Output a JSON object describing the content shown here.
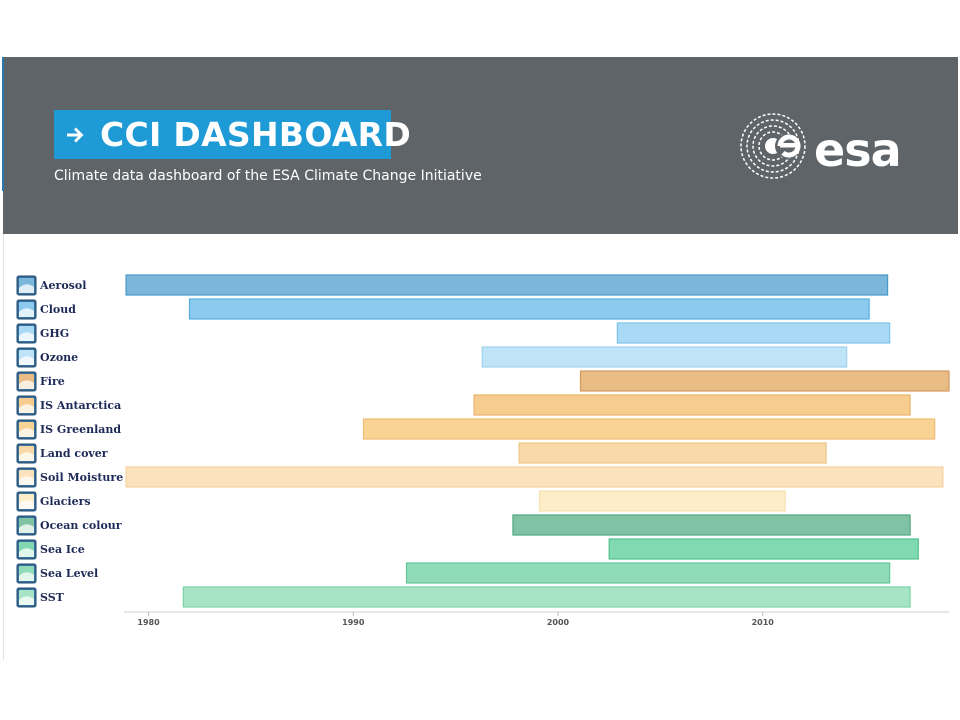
{
  "header": {
    "title": "CCI DASHBOARD",
    "subtitle": "Climate data dashboard of the ESA Climate Change Initiative",
    "logo_text": "esa",
    "background_color": "#5f6468",
    "title_box_color": "#1e9ad6"
  },
  "chart_data": {
    "type": "timeline",
    "x_ticks": [
      "1980",
      "1990",
      "2000",
      "2010"
    ],
    "xlim": [
      1978.8,
      2019.1
    ],
    "grid": false,
    "series": [
      {
        "name": "Aerosol",
        "start": 1978.9,
        "end": 2016.1,
        "color": "#7bb7da",
        "border": "#4a98c6",
        "icon": "aerosol-icon"
      },
      {
        "name": "Cloud",
        "start": 1982.0,
        "end": 2015.2,
        "color": "#8ccaf0",
        "border": "#58aee0",
        "icon": "cloud-icon"
      },
      {
        "name": "GHG",
        "start": 2002.9,
        "end": 2016.2,
        "color": "#aad9f6",
        "border": "#7cc3ec",
        "icon": "ghg-icon"
      },
      {
        "name": "Ozone",
        "start": 1996.3,
        "end": 2014.1,
        "color": "#bfe3f7",
        "border": "#9fd3f0",
        "icon": "ozone-icon"
      },
      {
        "name": "Fire",
        "start": 2001.1,
        "end": 2019.1,
        "color": "#e9bc85",
        "border": "#d19b5e",
        "icon": "fire-icon"
      },
      {
        "name": "IS Antarctica",
        "start": 1995.9,
        "end": 2017.2,
        "color": "#f7cd8f",
        "border": "#e9b46a",
        "icon": "is-antarctica-icon"
      },
      {
        "name": "IS Greenland",
        "start": 1990.5,
        "end": 2018.4,
        "color": "#f9d393",
        "border": "#ecbd72",
        "icon": "is-greenland-icon"
      },
      {
        "name": "Land cover",
        "start": 1998.1,
        "end": 2013.1,
        "color": "#f8d9a7",
        "border": "#ecc78b",
        "icon": "land-cover-icon"
      },
      {
        "name": "Soil Moisture",
        "start": 1978.9,
        "end": 2018.8,
        "color": "#fde3bd",
        "border": "#f5d3a2",
        "icon": "soil-moisture-icon"
      },
      {
        "name": "Glaciers",
        "start": 1999.1,
        "end": 2011.1,
        "color": "#fdeec9",
        "border": "#f6e1b0",
        "icon": "glaciers-icon"
      },
      {
        "name": "Ocean colour",
        "start": 1997.8,
        "end": 2017.2,
        "color": "#7fc3a4",
        "border": "#4fa67f",
        "icon": "ocean-colour-icon"
      },
      {
        "name": "Sea Ice",
        "start": 2002.5,
        "end": 2017.6,
        "color": "#80d9b0",
        "border": "#52c291",
        "icon": "sea-ice-icon"
      },
      {
        "name": "Sea Level",
        "start": 1992.6,
        "end": 2016.2,
        "color": "#91dcb8",
        "border": "#63c69a",
        "icon": "sea-level-icon"
      },
      {
        "name": "SST",
        "start": 1981.7,
        "end": 2017.2,
        "color": "#a7e4c5",
        "border": "#7bd2a8",
        "icon": "sst-icon"
      }
    ]
  }
}
